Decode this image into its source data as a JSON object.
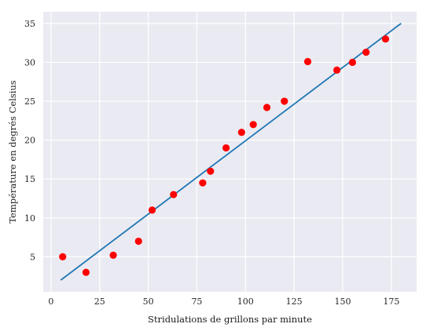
{
  "chart_data": {
    "type": "scatter",
    "title": "",
    "xlabel": "Stridulations de grillons par minute",
    "ylabel": "Température en degrés Celsius",
    "xlim": [
      -4,
      188
    ],
    "ylim": [
      0.5,
      36.5
    ],
    "xticks": [
      0,
      25,
      50,
      75,
      100,
      125,
      150,
      175
    ],
    "yticks": [
      5,
      10,
      15,
      20,
      25,
      30,
      35
    ],
    "grid": true,
    "legend": "none",
    "colors": {
      "background": "#EAEAF2",
      "grid": "#FFFFFF",
      "points": "#FF0000",
      "fit_line": "#1F77B4"
    },
    "series": [
      {
        "type": "scatter",
        "points": [
          {
            "x": 6,
            "y": 5
          },
          {
            "x": 18,
            "y": 3
          },
          {
            "x": 32,
            "y": 5.2
          },
          {
            "x": 45,
            "y": 7
          },
          {
            "x": 52,
            "y": 11
          },
          {
            "x": 63,
            "y": 13
          },
          {
            "x": 78,
            "y": 14.5
          },
          {
            "x": 82,
            "y": 16
          },
          {
            "x": 90,
            "y": 19
          },
          {
            "x": 98,
            "y": 21
          },
          {
            "x": 104,
            "y": 22
          },
          {
            "x": 111,
            "y": 24.2
          },
          {
            "x": 120,
            "y": 25
          },
          {
            "x": 132,
            "y": 30.1
          },
          {
            "x": 147,
            "y": 29
          },
          {
            "x": 155,
            "y": 30
          },
          {
            "x": 162,
            "y": 31.3
          },
          {
            "x": 172,
            "y": 33
          }
        ]
      },
      {
        "type": "line",
        "points": [
          {
            "x": 5,
            "y": 2
          },
          {
            "x": 180,
            "y": 35
          }
        ]
      }
    ]
  }
}
